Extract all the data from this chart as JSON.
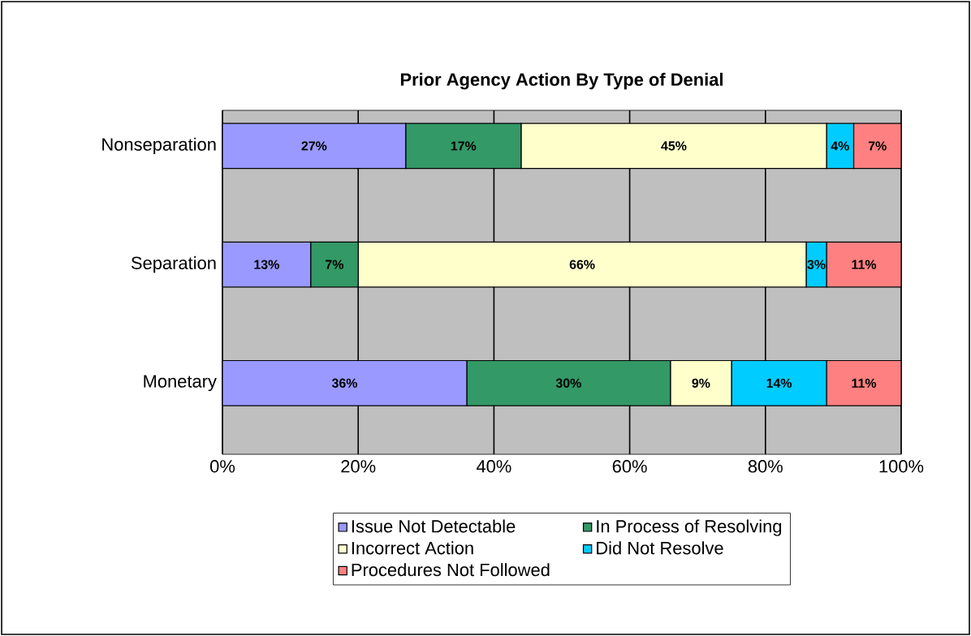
{
  "chart_data": {
    "type": "bar",
    "orientation": "horizontal",
    "stacked": true,
    "title": "Prior Agency Action By Type of Denial",
    "categories": [
      "Nonseparation",
      "Separation",
      "Monetary"
    ],
    "series": [
      {
        "name": "Issue Not Detectable",
        "color": "#9999ff",
        "values": [
          27,
          13,
          36
        ],
        "value_labels": [
          "27%",
          "13%",
          "36%"
        ]
      },
      {
        "name": "In Process of Resolving",
        "color": "#339966",
        "values": [
          17,
          7,
          30
        ],
        "value_labels": [
          "17%",
          "7%",
          "30%"
        ]
      },
      {
        "name": "Incorrect Action",
        "color": "#ffffcc",
        "values": [
          45,
          66,
          9
        ],
        "value_labels": [
          "45%",
          "66%",
          "9%"
        ]
      },
      {
        "name": "Did Not Resolve",
        "color": "#00ccff",
        "values": [
          4,
          3,
          14
        ],
        "value_labels": [
          "4%",
          "3%",
          "14%"
        ]
      },
      {
        "name": "Procedures Not Followed",
        "color": "#ff8080",
        "values": [
          7,
          11,
          11
        ],
        "value_labels": [
          "7%",
          "11%",
          "11%"
        ]
      }
    ],
    "xlim": [
      0,
      100
    ],
    "xticks": [
      {
        "value": 0,
        "label": "0%"
      },
      {
        "value": 20,
        "label": "20%"
      },
      {
        "value": 40,
        "label": "40%"
      },
      {
        "value": 60,
        "label": "60%"
      },
      {
        "value": 80,
        "label": "80%"
      },
      {
        "value": 100,
        "label": "100%"
      }
    ],
    "grid": "x",
    "legend": "bottom"
  }
}
